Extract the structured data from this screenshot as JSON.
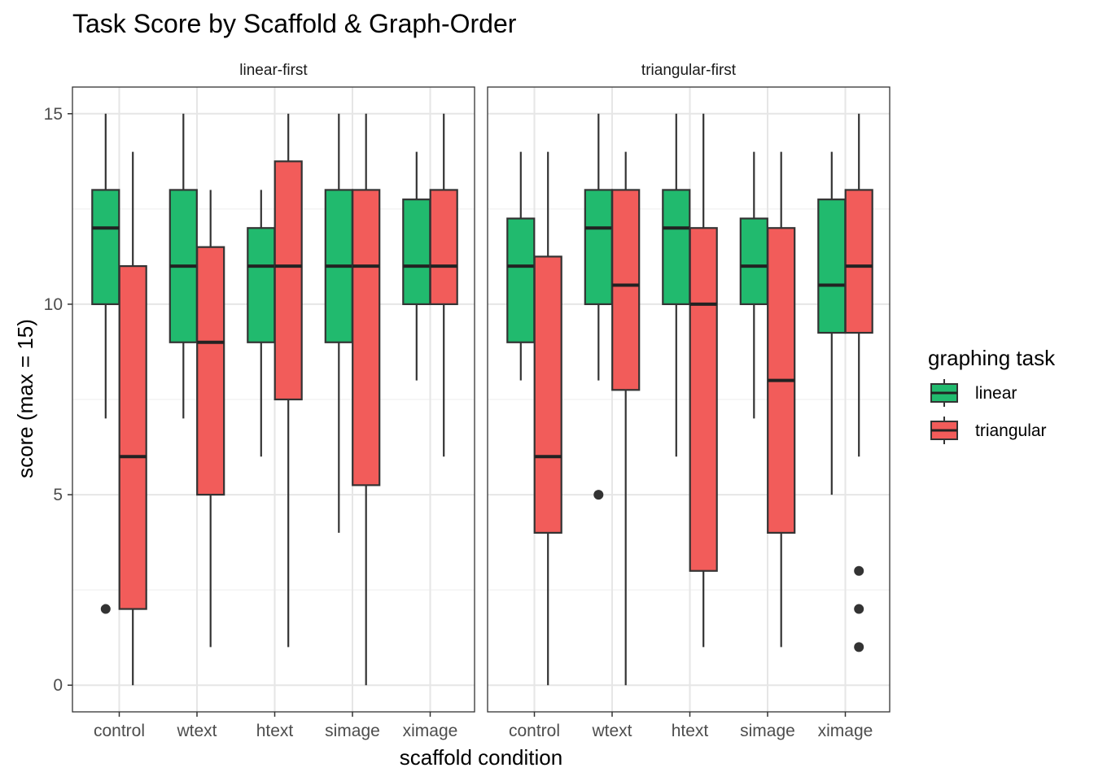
{
  "chart_data": {
    "type": "box",
    "title": "Task Score by Scaffold & Graph-Order",
    "xlabel": "scaffold condition",
    "ylabel": "score (max = 15)",
    "ylim": [
      -0.7,
      15.7
    ],
    "yticks": [
      0,
      5,
      10,
      15
    ],
    "categories": [
      "control",
      "wtext",
      "htext",
      "simage",
      "ximage"
    ],
    "grid": true,
    "legend": {
      "title": "graphing task",
      "position": "right",
      "entries": [
        {
          "name": "linear",
          "color": "#21BA6E"
        },
        {
          "name": "triangular",
          "color": "#F25C5A"
        }
      ]
    },
    "panels": [
      {
        "label": "linear-first",
        "series": [
          {
            "name": "linear",
            "boxes": [
              {
                "category": "control",
                "min": 7,
                "q1": 10,
                "median": 12,
                "q3": 13,
                "max": 15,
                "outliers": [
                  2
                ]
              },
              {
                "category": "wtext",
                "min": 7,
                "q1": 9,
                "median": 11,
                "q3": 13,
                "max": 15,
                "outliers": []
              },
              {
                "category": "htext",
                "min": 6,
                "q1": 9,
                "median": 11,
                "q3": 12,
                "max": 13,
                "outliers": []
              },
              {
                "category": "simage",
                "min": 4,
                "q1": 9,
                "median": 11,
                "q3": 13,
                "max": 15,
                "outliers": []
              },
              {
                "category": "ximage",
                "min": 8,
                "q1": 10,
                "median": 11,
                "q3": 12.75,
                "max": 14,
                "outliers": []
              }
            ]
          },
          {
            "name": "triangular",
            "boxes": [
              {
                "category": "control",
                "min": 0,
                "q1": 2,
                "median": 6,
                "q3": 11,
                "max": 14,
                "outliers": []
              },
              {
                "category": "wtext",
                "min": 1,
                "q1": 5,
                "median": 9,
                "q3": 11.5,
                "max": 13,
                "outliers": []
              },
              {
                "category": "htext",
                "min": 1,
                "q1": 7.5,
                "median": 11,
                "q3": 13.75,
                "max": 15,
                "outliers": []
              },
              {
                "category": "simage",
                "min": 0,
                "q1": 5.25,
                "median": 11,
                "q3": 13,
                "max": 15,
                "outliers": []
              },
              {
                "category": "ximage",
                "min": 6,
                "q1": 10,
                "median": 11,
                "q3": 13,
                "max": 15,
                "outliers": []
              }
            ]
          }
        ]
      },
      {
        "label": "triangular-first",
        "series": [
          {
            "name": "linear",
            "boxes": [
              {
                "category": "control",
                "min": 8,
                "q1": 9,
                "median": 11,
                "q3": 12.25,
                "max": 14,
                "outliers": []
              },
              {
                "category": "wtext",
                "min": 8,
                "q1": 10,
                "median": 12,
                "q3": 13,
                "max": 15,
                "outliers": [
                  5
                ]
              },
              {
                "category": "htext",
                "min": 6,
                "q1": 10,
                "median": 12,
                "q3": 13,
                "max": 15,
                "outliers": []
              },
              {
                "category": "simage",
                "min": 7,
                "q1": 10,
                "median": 11,
                "q3": 12.25,
                "max": 14,
                "outliers": []
              },
              {
                "category": "ximage",
                "min": 5,
                "q1": 9.25,
                "median": 10.5,
                "q3": 12.75,
                "max": 14,
                "outliers": []
              }
            ]
          },
          {
            "name": "triangular",
            "boxes": [
              {
                "category": "control",
                "min": 0,
                "q1": 4,
                "median": 6,
                "q3": 11.25,
                "max": 14,
                "outliers": []
              },
              {
                "category": "wtext",
                "min": 0,
                "q1": 7.75,
                "median": 10.5,
                "q3": 13,
                "max": 14,
                "outliers": []
              },
              {
                "category": "htext",
                "min": 1,
                "q1": 3,
                "median": 10,
                "q3": 12,
                "max": 15,
                "outliers": []
              },
              {
                "category": "simage",
                "min": 1,
                "q1": 4,
                "median": 8,
                "q3": 12,
                "max": 14,
                "outliers": []
              },
              {
                "category": "ximage",
                "min": 6,
                "q1": 9.25,
                "median": 11,
                "q3": 13,
                "max": 15,
                "outliers": [
                  3,
                  2,
                  1
                ]
              }
            ]
          }
        ]
      }
    ]
  }
}
